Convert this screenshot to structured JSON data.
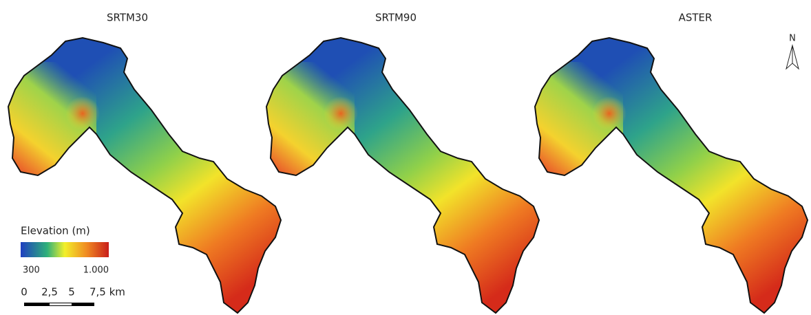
{
  "panels": [
    {
      "title": "SRTM30"
    },
    {
      "title": "SRTM90"
    },
    {
      "title": "ASTER"
    }
  ],
  "legend": {
    "title": "Elevation (m)",
    "min_label": "300",
    "max_label": "1.000"
  },
  "scale_bar": {
    "labels": [
      "0",
      "2,5",
      "5",
      "7,5 km"
    ]
  },
  "north_arrow": {
    "label": "N"
  }
}
